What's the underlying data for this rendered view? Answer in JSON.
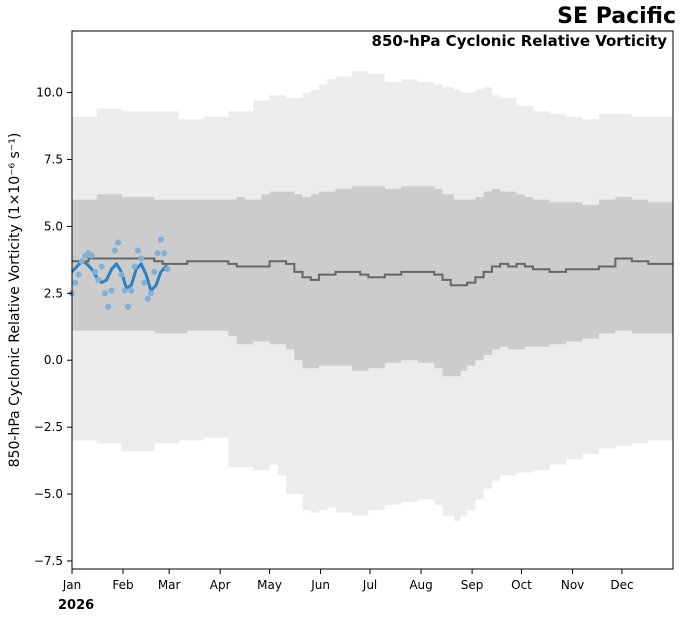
{
  "region": "SE Pacific",
  "year": "2026",
  "chart_data": {
    "type": "line",
    "title": "850-hPa Cyclonic Relative Vorticity",
    "ylabel": "850-hPa Cyclonic Relative Vorticity (1×10⁻⁶ s⁻¹)",
    "xlabel": "",
    "ylim": [
      -7.8,
      12.3
    ],
    "xlim": [
      0,
      365
    ],
    "yticks": [
      -7.5,
      -5.0,
      -2.5,
      0.0,
      2.5,
      5.0,
      7.5,
      10.0
    ],
    "ytick_labels": [
      "−7.5",
      "−5.0",
      "−2.5",
      "0.0",
      "2.5",
      "5.0",
      "7.5",
      "10.0"
    ],
    "xtick_labels": [
      "Jan",
      "Feb",
      "Mar",
      "Apr",
      "May",
      "Jun",
      "Jul",
      "Aug",
      "Sep",
      "Oct",
      "Nov",
      "Dec"
    ],
    "xtick_days": [
      0,
      31,
      59,
      90,
      120,
      151,
      181,
      212,
      243,
      273,
      304,
      334
    ],
    "grid": false,
    "colors": {
      "outer_band": "#ececec",
      "inner_band": "#cccccc",
      "climatology": "#666666",
      "observed_points": "#7fb0d8",
      "observed_smooth": "#2f7fc1"
    },
    "outer_band": {
      "day": [
        0,
        15,
        30,
        50,
        65,
        80,
        95,
        110,
        120,
        125,
        130,
        140,
        145,
        150,
        155,
        160,
        170,
        180,
        190,
        200,
        210,
        220,
        225,
        232,
        236,
        240,
        245,
        250,
        255,
        260,
        270,
        280,
        290,
        300,
        310,
        320,
        330,
        340,
        350,
        365
      ],
      "upper": [
        9.1,
        9.4,
        9.3,
        9.3,
        9.0,
        9.1,
        9.3,
        9.7,
        9.9,
        9.9,
        9.8,
        10.0,
        10.1,
        10.3,
        10.5,
        10.6,
        10.8,
        10.7,
        10.4,
        10.5,
        10.4,
        10.3,
        10.2,
        10.1,
        10.0,
        10.0,
        10.1,
        10.2,
        9.9,
        9.8,
        9.5,
        9.3,
        9.2,
        9.1,
        9.0,
        9.2,
        9.2,
        9.1,
        9.1,
        9.1
      ],
      "lower": [
        -2.9,
        -3.0,
        -3.1,
        -3.4,
        -3.1,
        -3.0,
        -2.9,
        -4.0,
        -4.1,
        -3.9,
        -4.3,
        -5.0,
        -5.6,
        -5.7,
        -5.6,
        -5.5,
        -5.7,
        -5.8,
        -5.6,
        -5.4,
        -5.3,
        -5.2,
        -5.4,
        -5.8,
        -6.0,
        -5.8,
        -5.6,
        -5.2,
        -4.8,
        -4.5,
        -4.3,
        -4.2,
        -4.1,
        -3.9,
        -3.7,
        -3.5,
        -3.3,
        -3.2,
        -3.1,
        -3.0
      ]
    },
    "inner_band": {
      "day": [
        0,
        15,
        30,
        40,
        50,
        60,
        70,
        85,
        95,
        100,
        105,
        110,
        115,
        120,
        130,
        135,
        140,
        145,
        150,
        160,
        170,
        180,
        190,
        200,
        210,
        220,
        225,
        232,
        236,
        240,
        245,
        250,
        255,
        260,
        265,
        270,
        275,
        280,
        290,
        300,
        310,
        320,
        330,
        340,
        350,
        365
      ],
      "upper": [
        6.0,
        6.2,
        6.1,
        6.1,
        6.0,
        6.0,
        6.0,
        6.0,
        6.0,
        6.1,
        6.0,
        6.0,
        6.2,
        6.3,
        6.3,
        6.2,
        6.1,
        6.2,
        6.3,
        6.4,
        6.5,
        6.5,
        6.4,
        6.5,
        6.5,
        6.4,
        6.2,
        6.0,
        6.0,
        6.0,
        6.1,
        6.3,
        6.4,
        6.3,
        6.3,
        6.2,
        6.1,
        6.0,
        5.9,
        5.9,
        5.8,
        6.0,
        6.1,
        6.0,
        5.9,
        5.9
      ],
      "lower": [
        1.1,
        1.1,
        1.1,
        1.1,
        1.1,
        1.0,
        1.0,
        1.1,
        1.1,
        0.9,
        0.6,
        0.6,
        0.7,
        0.7,
        0.6,
        0.4,
        0.0,
        -0.3,
        -0.3,
        -0.2,
        -0.2,
        -0.4,
        -0.3,
        -0.1,
        0.0,
        -0.1,
        -0.3,
        -0.6,
        -0.6,
        -0.4,
        -0.2,
        0.0,
        0.2,
        0.4,
        0.5,
        0.4,
        0.4,
        0.5,
        0.5,
        0.6,
        0.7,
        0.8,
        1.0,
        1.1,
        1.0,
        1.0
      ]
    },
    "series": [
      {
        "name": "",
        "kind": "climatology",
        "day": [
          0,
          10,
          20,
          30,
          40,
          50,
          55,
          60,
          70,
          80,
          85,
          90,
          95,
          100,
          110,
          120,
          125,
          130,
          135,
          140,
          145,
          150,
          160,
          170,
          175,
          180,
          190,
          200,
          210,
          220,
          225,
          230,
          235,
          240,
          245,
          250,
          255,
          260,
          265,
          270,
          275,
          280,
          290,
          300,
          310,
          320,
          330,
          340,
          350,
          365
        ],
        "values": [
          3.7,
          3.8,
          3.8,
          3.8,
          3.8,
          3.7,
          3.6,
          3.6,
          3.7,
          3.7,
          3.7,
          3.7,
          3.6,
          3.5,
          3.5,
          3.7,
          3.7,
          3.6,
          3.3,
          3.1,
          3.0,
          3.2,
          3.3,
          3.3,
          3.2,
          3.1,
          3.2,
          3.3,
          3.3,
          3.2,
          3.0,
          2.8,
          2.8,
          2.9,
          3.1,
          3.3,
          3.5,
          3.6,
          3.5,
          3.6,
          3.5,
          3.4,
          3.3,
          3.4,
          3.4,
          3.5,
          3.8,
          3.7,
          3.6,
          3.6
        ]
      },
      {
        "name": "",
        "kind": "observed",
        "day": [
          0,
          2,
          4,
          6,
          8,
          10,
          12,
          14,
          16,
          18,
          20,
          22,
          24,
          26,
          28,
          30,
          32,
          34,
          36,
          38,
          40,
          42,
          44,
          46,
          48,
          50,
          52,
          54,
          56,
          58
        ],
        "values": [
          2.5,
          2.9,
          3.2,
          3.7,
          3.9,
          4.0,
          3.9,
          3.3,
          3.0,
          3.5,
          2.5,
          2.0,
          2.6,
          4.1,
          4.4,
          3.2,
          2.6,
          2.0,
          2.6,
          3.5,
          4.1,
          3.8,
          2.9,
          2.3,
          2.5,
          3.3,
          4.0,
          4.5,
          4.0,
          3.4
        ]
      },
      {
        "name": "",
        "kind": "smoothed",
        "day": [
          0,
          3,
          6,
          9,
          12,
          15,
          18,
          21,
          24,
          27,
          30,
          33,
          36,
          39,
          42,
          45,
          48,
          51,
          54,
          57,
          58
        ],
        "values": [
          3.3,
          3.5,
          3.7,
          3.6,
          3.4,
          3.1,
          2.9,
          3.0,
          3.4,
          3.6,
          3.3,
          2.7,
          2.8,
          3.4,
          3.6,
          3.2,
          2.6,
          2.8,
          3.3,
          3.5,
          3.5
        ]
      }
    ]
  }
}
